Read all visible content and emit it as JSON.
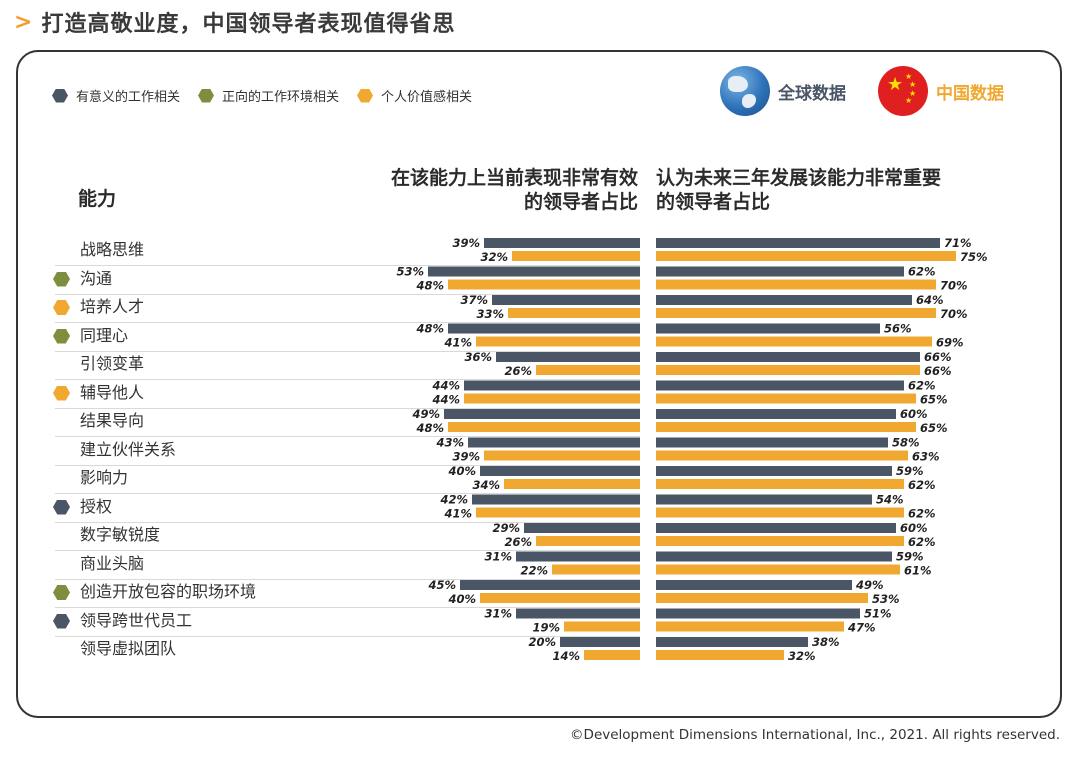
{
  "page_title": "打造高敬业度，中国领导者表现值得省思",
  "legend": [
    {
      "label": "有意义的工作相关",
      "color": "#4a5566"
    },
    {
      "label": "正向的工作环境相关",
      "color": "#7d8f3e"
    },
    {
      "label": "个人价值感相关",
      "color": "#f0a830"
    }
  ],
  "badges": {
    "global": "全球数据",
    "china": "中国数据"
  },
  "colors": {
    "global_bar": "#4a5566",
    "china_bar": "#f0a830",
    "china_text": "#f0a830"
  },
  "headers": {
    "ability": "能力",
    "left_line1": "在该能力上当前表现非常有效",
    "left_line2": "的领导者占比",
    "right_line1": "认为未来三年发展该能力非常重要",
    "right_line2": "的领导者占比"
  },
  "copyright": "©Development Dimensions International, Inc., 2021. All rights reserved.",
  "chart_data": {
    "type": "bar",
    "orientation": "horizontal-butterfly",
    "value_suffix": "%",
    "categories": [
      "战略思维",
      "沟通",
      "培养人才",
      "同理心",
      "引领变革",
      "辅导他人",
      "结果导向",
      "建立伙伴关系",
      "影响力",
      "授权",
      "数字敏锐度",
      "商业头脑",
      "创造开放包容的职场环境",
      "领导跨世代员工",
      "领导虚拟团队"
    ],
    "category_markers": [
      null,
      "正向的工作环境相关",
      "个人价值感相关",
      "正向的工作环境相关",
      null,
      "个人价值感相关",
      null,
      null,
      null,
      "有意义的工作相关",
      null,
      null,
      "正向的工作环境相关",
      "有意义的工作相关",
      null
    ],
    "panels": [
      {
        "title": "在该能力上当前表现非常有效的领导者占比",
        "series": [
          {
            "name": "全球数据",
            "values": [
              39,
              53,
              37,
              48,
              36,
              44,
              49,
              43,
              40,
              42,
              29,
              31,
              45,
              31,
              20
            ]
          },
          {
            "name": "中国数据",
            "values": [
              32,
              48,
              33,
              41,
              26,
              44,
              48,
              39,
              34,
              41,
              26,
              22,
              40,
              19,
              14
            ]
          }
        ]
      },
      {
        "title": "认为未来三年发展该能力非常重要的领导者占比",
        "series": [
          {
            "name": "全球数据",
            "values": [
              71,
              62,
              64,
              56,
              66,
              62,
              60,
              58,
              59,
              54,
              60,
              59,
              49,
              51,
              38
            ]
          },
          {
            "name": "中国数据",
            "values": [
              75,
              70,
              70,
              69,
              66,
              65,
              65,
              63,
              62,
              62,
              62,
              61,
              53,
              47,
              32
            ]
          }
        ]
      }
    ],
    "legend_position": "top-left"
  }
}
